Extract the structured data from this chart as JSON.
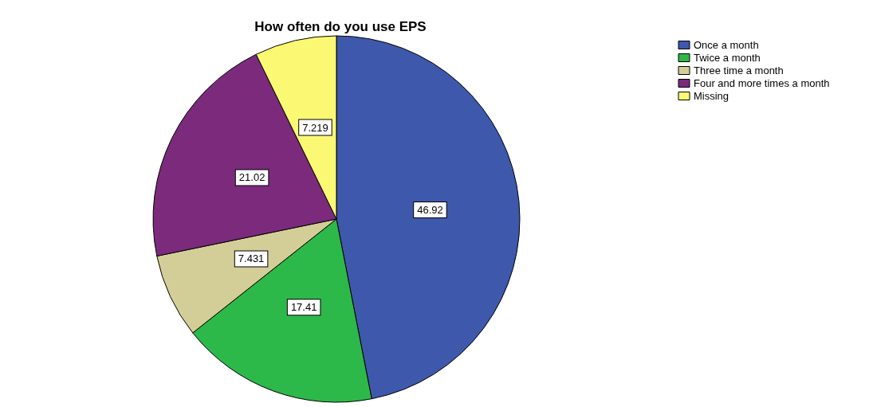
{
  "chart_data": {
    "type": "pie",
    "title": "How often do you use EPS",
    "categories": [
      "Once a month",
      "Twice a month",
      "Three time a month",
      "Four and more times a month",
      "Missing"
    ],
    "values": [
      46.92,
      17.41,
      7.431,
      21.02,
      7.219
    ],
    "colors": [
      "#3e58ac",
      "#2db84a",
      "#d3ce97",
      "#7b2a7c",
      "#fbf873"
    ],
    "data_labels": true,
    "legend": "top right"
  }
}
